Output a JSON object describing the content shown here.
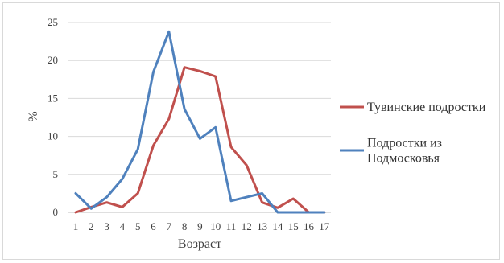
{
  "chart_data": {
    "type": "line",
    "x": [
      1,
      2,
      3,
      4,
      5,
      6,
      7,
      8,
      9,
      10,
      11,
      12,
      13,
      14,
      15,
      16,
      17
    ],
    "series": [
      {
        "name": "Тувинские подростки",
        "color": "#c0504d",
        "values": [
          0,
          0.7,
          1.3,
          0.7,
          2.5,
          8.8,
          12.3,
          19.1,
          18.6,
          17.9,
          8.6,
          6.2,
          1.3,
          0.6,
          1.8,
          0,
          0
        ]
      },
      {
        "name": "Подростки из Подмосковья",
        "name_lines": [
          "Подростки из",
          "Подмосковья"
        ],
        "color": "#4f81bd",
        "values": [
          2.5,
          0.5,
          2,
          4.4,
          8.3,
          18.5,
          23.8,
          13.6,
          9.7,
          11.2,
          1.5,
          2,
          2.5,
          0,
          0,
          0,
          0
        ]
      }
    ],
    "ylim": [
      0,
      25
    ],
    "yticks": [
      "0",
      "5",
      "10",
      "15",
      "20",
      "25"
    ],
    "xticks": [
      "1",
      "2",
      "3",
      "4",
      "5",
      "6",
      "7",
      "8",
      "9",
      "10",
      "11",
      "12",
      "13",
      "14",
      "15",
      "16",
      "17"
    ],
    "xlabel": "Возраст",
    "ylabel": "%",
    "grid": true,
    "legend_position": "right"
  }
}
